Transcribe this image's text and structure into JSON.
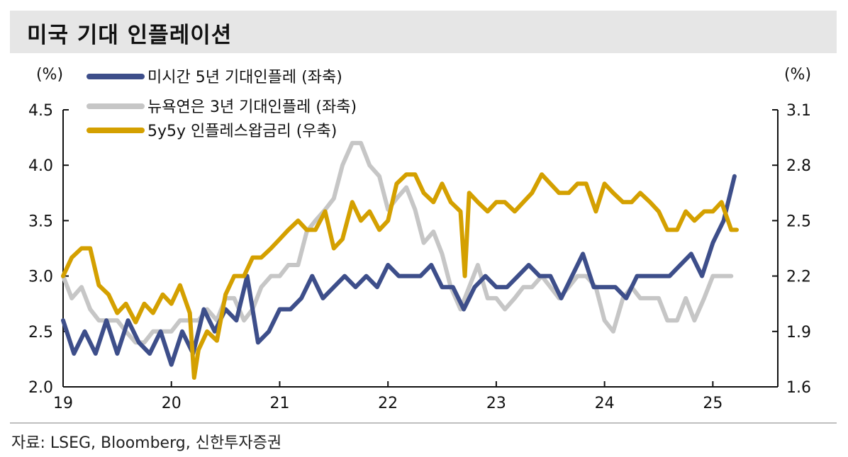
{
  "header": {
    "title": "미국 기대 인플레이션"
  },
  "source": "자료: LSEG, Bloomberg, 신한투자증권",
  "chart_data": {
    "type": "line",
    "title": "미국 기대 인플레이션",
    "left_unit": "(%)",
    "right_unit": "(%)",
    "left_axis": {
      "min": 2.0,
      "max": 4.5,
      "ticks": [
        "2.0",
        "2.5",
        "3.0",
        "3.5",
        "4.0",
        "4.5"
      ]
    },
    "right_axis": {
      "min": 1.6,
      "max": 3.1,
      "ticks": [
        "1.6",
        "1.9",
        "2.2",
        "2.5",
        "2.8",
        "3.1"
      ]
    },
    "x_axis": {
      "min": 2019.0,
      "max": 2025.6,
      "ticks": [
        "19",
        "20",
        "21",
        "22",
        "23",
        "24",
        "25"
      ]
    },
    "series": [
      {
        "name": "미시간 5년 기대인플레 (좌축)",
        "axis": "left",
        "color": "#3d4e8a",
        "x": [
          2019.0,
          2019.1,
          2019.2,
          2019.3,
          2019.4,
          2019.5,
          2019.6,
          2019.7,
          2019.8,
          2019.9,
          2020.0,
          2020.1,
          2020.2,
          2020.3,
          2020.4,
          2020.5,
          2020.6,
          2020.7,
          2020.8,
          2020.9,
          2021.0,
          2021.1,
          2021.2,
          2021.3,
          2021.4,
          2021.5,
          2021.6,
          2021.7,
          2021.8,
          2021.9,
          2022.0,
          2022.1,
          2022.2,
          2022.3,
          2022.4,
          2022.5,
          2022.6,
          2022.7,
          2022.8,
          2022.9,
          2023.0,
          2023.1,
          2023.2,
          2023.3,
          2023.4,
          2023.5,
          2023.6,
          2023.7,
          2023.8,
          2023.9,
          2024.0,
          2024.1,
          2024.2,
          2024.3,
          2024.4,
          2024.5,
          2024.6,
          2024.7,
          2024.8,
          2024.9,
          2025.0,
          2025.1,
          2025.2
        ],
        "y": [
          2.6,
          2.3,
          2.5,
          2.3,
          2.6,
          2.3,
          2.6,
          2.4,
          2.3,
          2.5,
          2.2,
          2.5,
          2.3,
          2.7,
          2.5,
          2.7,
          2.6,
          3.0,
          2.4,
          2.5,
          2.7,
          2.7,
          2.8,
          3.0,
          2.8,
          2.9,
          3.0,
          2.9,
          3.0,
          2.9,
          3.1,
          3.0,
          3.0,
          3.0,
          3.1,
          2.9,
          2.9,
          2.7,
          2.9,
          3.0,
          2.9,
          2.9,
          3.0,
          3.1,
          3.0,
          3.0,
          2.8,
          3.0,
          3.2,
          2.9,
          2.9,
          2.9,
          2.8,
          3.0,
          3.0,
          3.0,
          3.0,
          3.1,
          3.2,
          3.0,
          3.3,
          3.5,
          3.9
        ]
      },
      {
        "name": "뉴욕연은 3년 기대인플레 (좌축)",
        "axis": "left",
        "color": "#c6c6c6",
        "x": [
          2019.0,
          2019.08,
          2019.17,
          2019.25,
          2019.33,
          2019.42,
          2019.5,
          2019.58,
          2019.67,
          2019.75,
          2019.83,
          2019.92,
          2020.0,
          2020.08,
          2020.17,
          2020.25,
          2020.33,
          2020.42,
          2020.5,
          2020.58,
          2020.67,
          2020.75,
          2020.83,
          2020.92,
          2021.0,
          2021.08,
          2021.17,
          2021.25,
          2021.33,
          2021.42,
          2021.5,
          2021.58,
          2021.67,
          2021.75,
          2021.83,
          2021.92,
          2022.0,
          2022.08,
          2022.17,
          2022.25,
          2022.33,
          2022.42,
          2022.5,
          2022.58,
          2022.67,
          2022.75,
          2022.83,
          2022.92,
          2023.0,
          2023.08,
          2023.17,
          2023.25,
          2023.33,
          2023.42,
          2023.5,
          2023.58,
          2023.67,
          2023.75,
          2023.83,
          2023.92,
          2024.0,
          2024.08,
          2024.17,
          2024.25,
          2024.33,
          2024.42,
          2024.5,
          2024.58,
          2024.67,
          2024.75,
          2024.83,
          2024.92,
          2025.0,
          2025.08,
          2025.17
        ],
        "y": [
          3.0,
          2.8,
          2.9,
          2.7,
          2.6,
          2.6,
          2.6,
          2.5,
          2.4,
          2.4,
          2.5,
          2.5,
          2.5,
          2.6,
          2.6,
          2.6,
          2.7,
          2.6,
          2.8,
          2.8,
          2.6,
          2.7,
          2.9,
          3.0,
          3.0,
          3.1,
          3.1,
          3.4,
          3.5,
          3.6,
          3.7,
          4.0,
          4.2,
          4.2,
          4.0,
          3.9,
          3.6,
          3.7,
          3.8,
          3.6,
          3.3,
          3.4,
          3.2,
          2.9,
          2.7,
          2.9,
          3.1,
          2.8,
          2.8,
          2.7,
          2.8,
          2.9,
          2.9,
          3.0,
          2.9,
          2.8,
          2.9,
          3.0,
          3.0,
          2.9,
          2.6,
          2.5,
          2.8,
          2.9,
          2.8,
          2.8,
          2.8,
          2.6,
          2.6,
          2.8,
          2.6,
          2.8,
          3.0,
          3.0,
          3.0
        ]
      },
      {
        "name": "5y5y 인플레스왑금리 (우축)",
        "axis": "right",
        "color": "#d4a000",
        "x": [
          2019.0,
          2019.08,
          2019.17,
          2019.25,
          2019.33,
          2019.42,
          2019.5,
          2019.58,
          2019.67,
          2019.75,
          2019.83,
          2019.92,
          2020.0,
          2020.08,
          2020.17,
          2020.21,
          2020.25,
          2020.33,
          2020.42,
          2020.5,
          2020.58,
          2020.67,
          2020.75,
          2020.83,
          2020.92,
          2021.0,
          2021.08,
          2021.17,
          2021.25,
          2021.33,
          2021.42,
          2021.5,
          2021.58,
          2021.67,
          2021.75,
          2021.83,
          2021.92,
          2022.0,
          2022.08,
          2022.17,
          2022.25,
          2022.33,
          2022.42,
          2022.5,
          2022.58,
          2022.67,
          2022.71,
          2022.75,
          2022.83,
          2022.92,
          2023.0,
          2023.08,
          2023.17,
          2023.25,
          2023.33,
          2023.42,
          2023.5,
          2023.58,
          2023.67,
          2023.75,
          2023.83,
          2023.92,
          2024.0,
          2024.08,
          2024.17,
          2024.25,
          2024.33,
          2024.42,
          2024.5,
          2024.58,
          2024.67,
          2024.75,
          2024.83,
          2024.92,
          2025.0,
          2025.08,
          2025.17,
          2025.22
        ],
        "y": [
          2.2,
          2.3,
          2.35,
          2.35,
          2.15,
          2.1,
          2.0,
          2.05,
          1.95,
          2.05,
          2.0,
          2.1,
          2.05,
          2.15,
          2.0,
          1.65,
          1.8,
          1.9,
          1.85,
          2.1,
          2.2,
          2.2,
          2.3,
          2.3,
          2.35,
          2.4,
          2.45,
          2.5,
          2.45,
          2.45,
          2.55,
          2.35,
          2.4,
          2.6,
          2.5,
          2.55,
          2.45,
          2.5,
          2.7,
          2.75,
          2.75,
          2.65,
          2.6,
          2.7,
          2.6,
          2.55,
          2.2,
          2.65,
          2.6,
          2.55,
          2.6,
          2.6,
          2.55,
          2.6,
          2.65,
          2.75,
          2.7,
          2.65,
          2.65,
          2.7,
          2.7,
          2.55,
          2.7,
          2.65,
          2.6,
          2.6,
          2.65,
          2.6,
          2.55,
          2.45,
          2.45,
          2.55,
          2.5,
          2.55,
          2.55,
          2.6,
          2.45,
          2.45
        ]
      }
    ]
  }
}
